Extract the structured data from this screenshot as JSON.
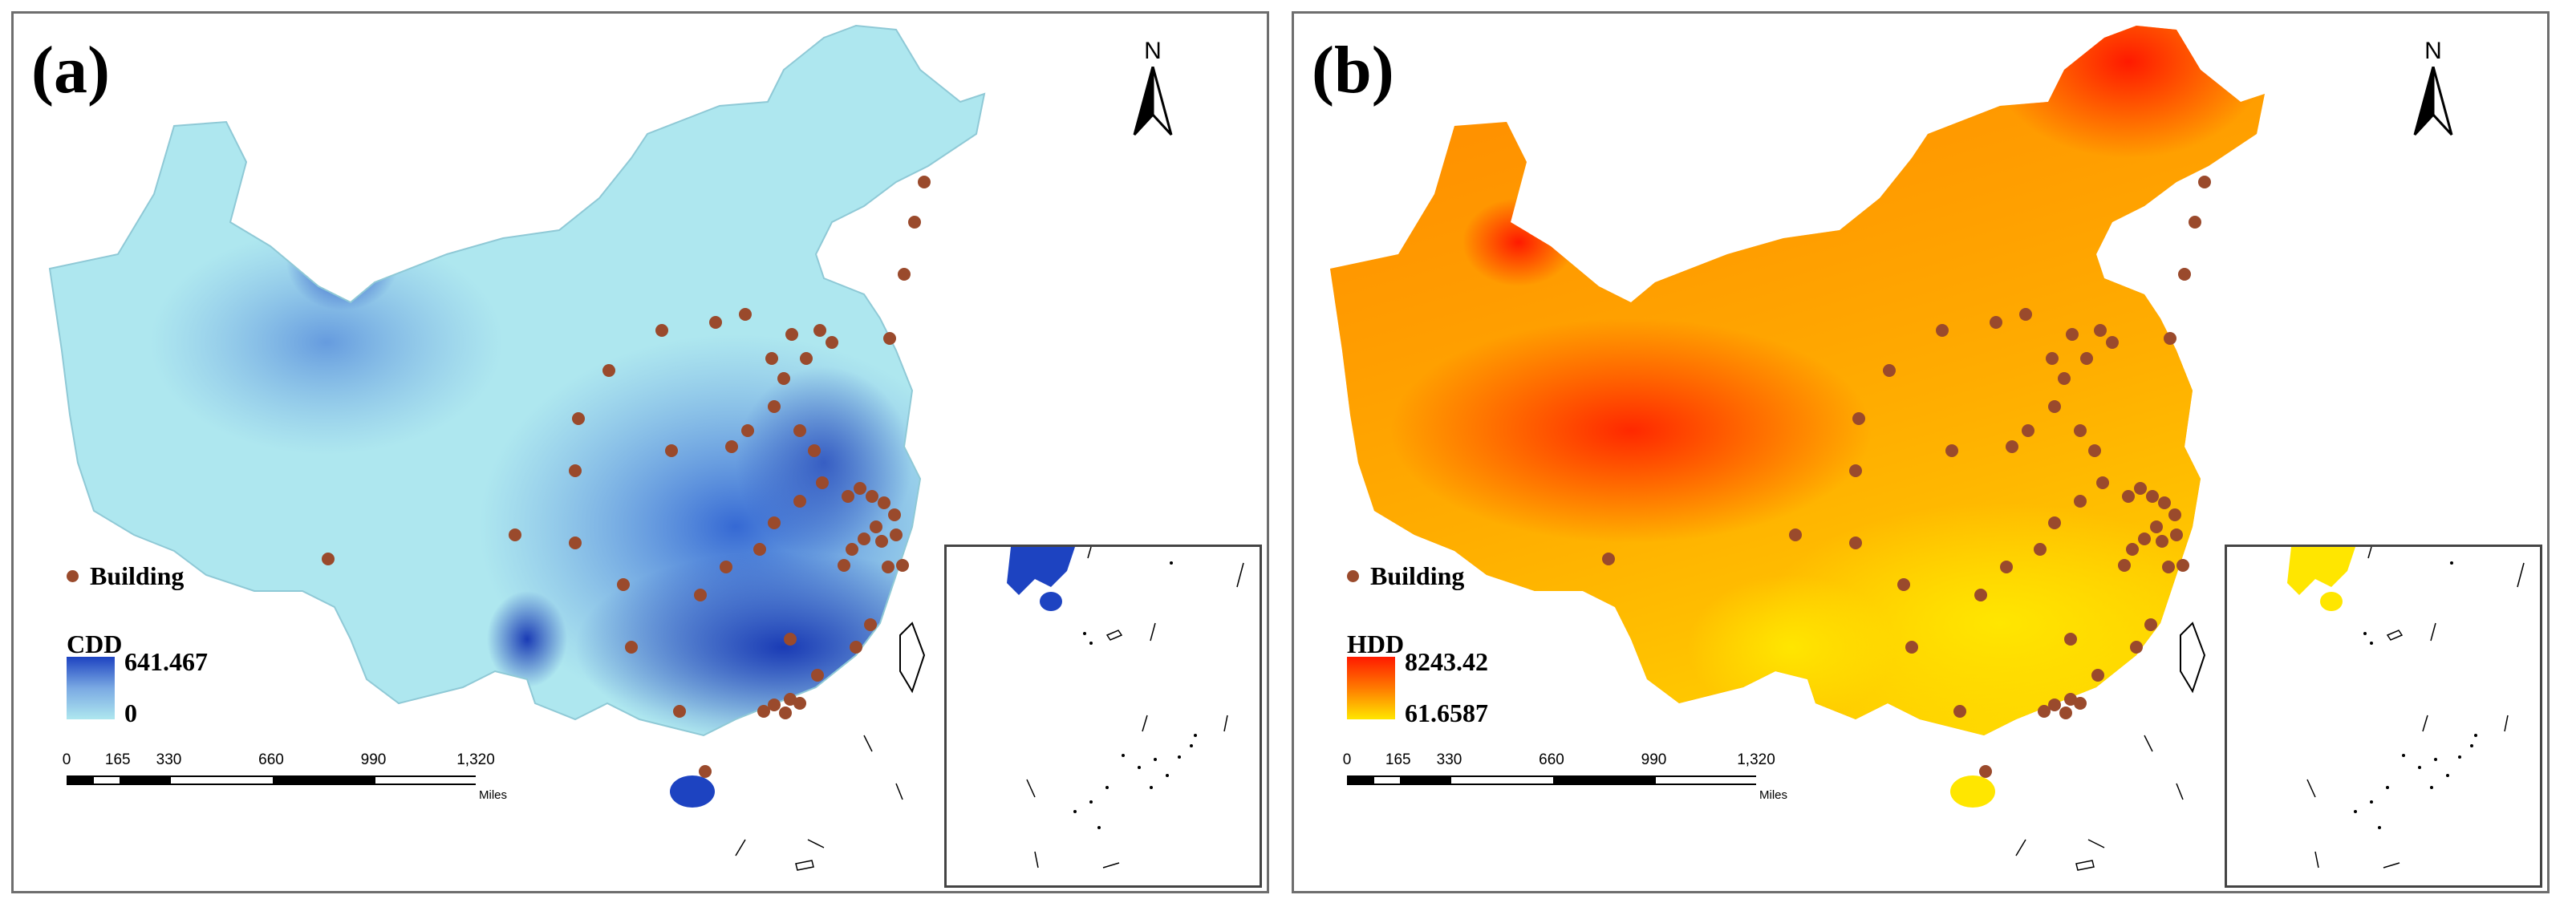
{
  "panels": [
    {
      "id": "a",
      "label": "(a)",
      "north": "N",
      "legend": {
        "point_label": "Building",
        "variable": "CDD",
        "max": "641.467",
        "min": "0",
        "ramp_colors": [
          "#1d43c1",
          "#7aa9e3",
          "#aee7ef"
        ]
      },
      "scalebar": {
        "ticks": [
          "0",
          "165",
          "330",
          "660",
          "990",
          "1,320"
        ],
        "unit": "Miles"
      },
      "palette": {
        "base": "#aee7ef",
        "dark": "#1d43c1",
        "mid": "#5e8fdf"
      }
    },
    {
      "id": "b",
      "label": "(b)",
      "north": "N",
      "legend": {
        "point_label": "Building",
        "variable": "HDD",
        "max": "8243.42",
        "min": "61.6587",
        "ramp_colors": [
          "#ff1a00",
          "#ff7a00",
          "#ffe600"
        ]
      },
      "scalebar": {
        "ticks": [
          "0",
          "165",
          "330",
          "660",
          "990",
          "1,320"
        ],
        "unit": "Miles"
      },
      "palette": {
        "base": "#ff8a00",
        "dark": "#ff1a00",
        "mid": "#ffe600"
      }
    }
  ],
  "point_color": "#9a4a2c"
}
